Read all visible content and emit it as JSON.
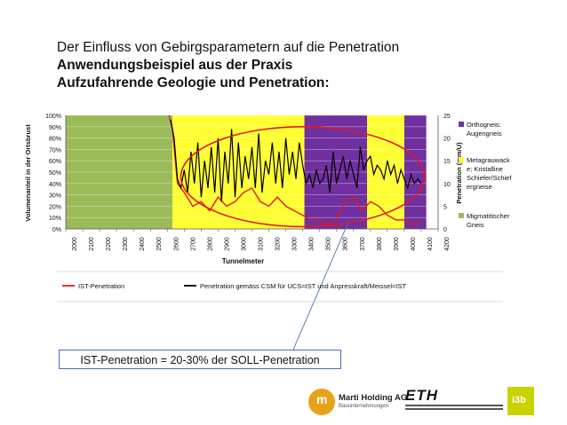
{
  "title": {
    "line1": "Der Einfluss von Gebirgsparametern auf die Penetration",
    "line2": "Anwendungsbeispiel aus der Praxis",
    "line3": "Aufzufahrende Geologie und Penetration:"
  },
  "chart_data": {
    "type": "line",
    "ylabel_left": "Volumenanteil in der Ortsbrust",
    "ylabel_right": "Penetration (mm/U)",
    "xlabel": "Tunnelmeter",
    "left_ylim": [
      0,
      100
    ],
    "left_ticks": [
      "0%",
      "10%",
      "20%",
      "30%",
      "40%",
      "50%",
      "60%",
      "70%",
      "80%",
      "90%",
      "100%"
    ],
    "right_ylim": [
      0,
      25
    ],
    "right_ticks": [
      "0",
      "5",
      "10",
      "15",
      "20",
      "25"
    ],
    "xlim": [
      2000,
      4200
    ],
    "x_ticks": [
      "2000",
      "2100",
      "2200",
      "2300",
      "2400",
      "2500",
      "2600",
      "2700",
      "2800",
      "2900",
      "3000",
      "3100",
      "3200",
      "3300",
      "3400",
      "3500",
      "3600",
      "3700",
      "3800",
      "3900",
      "4000",
      "4100",
      "4200"
    ],
    "geology_bands": [
      {
        "from": 2000,
        "to": 2630,
        "class": "gneis",
        "color": "#9bbb59"
      },
      {
        "from": 2630,
        "to": 3410,
        "class": "meta",
        "color": "#ffff33"
      },
      {
        "from": 3410,
        "to": 3780,
        "class": "ortho",
        "color": "#7030a0"
      },
      {
        "from": 3780,
        "to": 4000,
        "class": "meta",
        "color": "#ffff33"
      },
      {
        "from": 4000,
        "to": 4130,
        "class": "ortho",
        "color": "#7030a0"
      }
    ],
    "legend_geology": [
      {
        "label": "Orthogneis: Augengneis",
        "color": "#7030a0"
      },
      {
        "label": "Metagrauwacke; Kristalline Schiefer/Schiefergneise",
        "color": "#ffff33"
      },
      {
        "label": "Migmatitischer Gneis",
        "color": "#9bbb59"
      }
    ],
    "series": [
      {
        "name": "IST-Penetration",
        "color": "#e31a1c",
        "x": [
          2610,
          2630,
          2660,
          2700,
          2750,
          2800,
          2850,
          2900,
          2950,
          3000,
          3050,
          3100,
          3150,
          3200,
          3250,
          3300,
          3350,
          3400,
          3450,
          3500,
          3550,
          3600,
          3650,
          3700,
          3750,
          3800,
          3850,
          3900,
          3950,
          4000,
          4050,
          4100
        ],
        "values": [
          25,
          22,
          10,
          8,
          5,
          6,
          4,
          7,
          5,
          6,
          8,
          9,
          6,
          5,
          7,
          5,
          4,
          3,
          2,
          2,
          1,
          2,
          6,
          7,
          4,
          6,
          5,
          3,
          2,
          2,
          1,
          1.5
        ]
      },
      {
        "name": "Penetration gemäss CSM für UCS=IST und Anpresskraft/Meissel=IST",
        "color": "#000000",
        "x": [
          2620,
          2640,
          2660,
          2680,
          2700,
          2720,
          2740,
          2760,
          2780,
          2800,
          2820,
          2840,
          2860,
          2880,
          2900,
          2920,
          2940,
          2960,
          2980,
          3000,
          3020,
          3040,
          3060,
          3080,
          3100,
          3120,
          3140,
          3160,
          3180,
          3200,
          3220,
          3240,
          3260,
          3280,
          3300,
          3320,
          3340,
          3360,
          3380,
          3400,
          3420,
          3440,
          3460,
          3480,
          3500,
          3520,
          3540,
          3560,
          3580,
          3600,
          3620,
          3640,
          3660,
          3680,
          3700,
          3720,
          3740,
          3760,
          3780,
          3800,
          3820,
          3840,
          3860,
          3880,
          3900,
          3920,
          3940,
          3960,
          3980,
          4000,
          4020,
          4040,
          4060,
          4080,
          4100
        ],
        "values": [
          24,
          20,
          11,
          9,
          13,
          8,
          17,
          10,
          19,
          7,
          15,
          9,
          18,
          8,
          20,
          6,
          17,
          10,
          22,
          7,
          19,
          9,
          16,
          11,
          18,
          9,
          21,
          8,
          15,
          12,
          19,
          10,
          17,
          9,
          20,
          12,
          17,
          11,
          19,
          14,
          10,
          12,
          9,
          13,
          10,
          11,
          14,
          8,
          17,
          10,
          13,
          16,
          11,
          15,
          12,
          9,
          18,
          13,
          15,
          16,
          12,
          14,
          13,
          11,
          15,
          12,
          14,
          10,
          13,
          11,
          9,
          12,
          10,
          11,
          10
        ]
      }
    ],
    "ellipse": {
      "cx_m": 3400,
      "cy_pct": 46,
      "rx_m": 720,
      "ry_pct": 44
    },
    "callout_text": "IST-Penetration = 20-30% der SOLL-Penetration"
  }
}
